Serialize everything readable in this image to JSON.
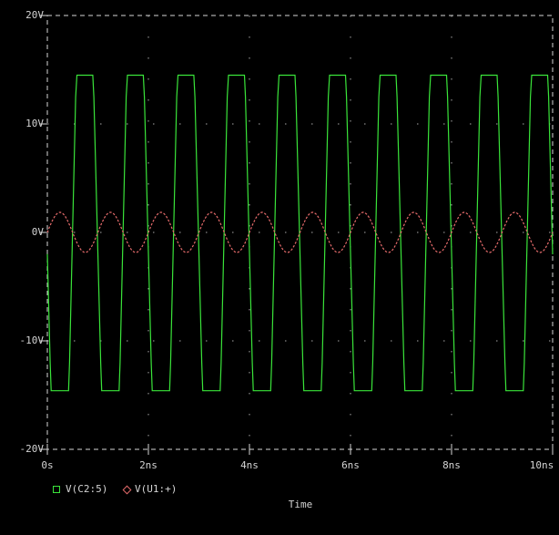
{
  "colors": {
    "background": "#000000",
    "text": "#d4d4d4",
    "border": "#d6d6d6",
    "grid_dots": "#a8a8a8",
    "trace_square": "#3ae43a",
    "trace_sine": "#e56b6b"
  },
  "chart_data": {
    "type": "line",
    "title": "",
    "xlabel": "Time",
    "x_unit": "ns",
    "y_unit": "V",
    "xlim_ns": [
      0,
      10
    ],
    "ylim_v": [
      -20,
      20
    ],
    "x_ticks": [
      {
        "t": 0,
        "label": "0s"
      },
      {
        "t": 2,
        "label": "2ns"
      },
      {
        "t": 4,
        "label": "4ns"
      },
      {
        "t": 6,
        "label": "6ns"
      },
      {
        "t": 8,
        "label": "8ns"
      },
      {
        "t": 10,
        "label": "10ns"
      }
    ],
    "y_ticks": [
      {
        "v": 20,
        "label": "20V"
      },
      {
        "v": 10,
        "label": "10V"
      },
      {
        "v": 0,
        "label": "0V"
      },
      {
        "v": -10,
        "label": "-10V"
      },
      {
        "v": -20,
        "label": "-20V"
      }
    ],
    "grid": {
      "style": "sparse-dotted",
      "v_lines_ns": [
        2,
        4,
        6,
        8
      ],
      "h_lines_v": [
        10,
        0,
        -10
      ]
    },
    "series": [
      {
        "name": "V(C2:5)",
        "marker": "square",
        "color": "#3ae43a",
        "shape": "square",
        "period_ns": 1,
        "cycles": 10,
        "high_v": 14.5,
        "low_v": -14.6,
        "start_v": -2.0,
        "cycle_points": [
          [
            0.055,
            -12.0
          ],
          [
            0.075,
            -14.6
          ],
          [
            0.42,
            -14.6
          ],
          [
            0.44,
            -12.0
          ],
          [
            0.56,
            12.5
          ],
          [
            0.585,
            14.5
          ],
          [
            0.9,
            14.5
          ],
          [
            0.92,
            12.5
          ]
        ]
      },
      {
        "name": "V(U1:+)",
        "marker": "diamond",
        "color": "#e56b6b",
        "shape": "sine",
        "period_ns": 1,
        "amplitude_v": 1.85,
        "offset_v": 0,
        "phase_deg": 0
      }
    ]
  },
  "legend": {
    "items": [
      {
        "label": "V(C2:5)",
        "marker": "square",
        "color": "#3ae43a"
      },
      {
        "label": "V(U1:+)",
        "marker": "diamond",
        "color": "#e56b6b"
      }
    ]
  }
}
